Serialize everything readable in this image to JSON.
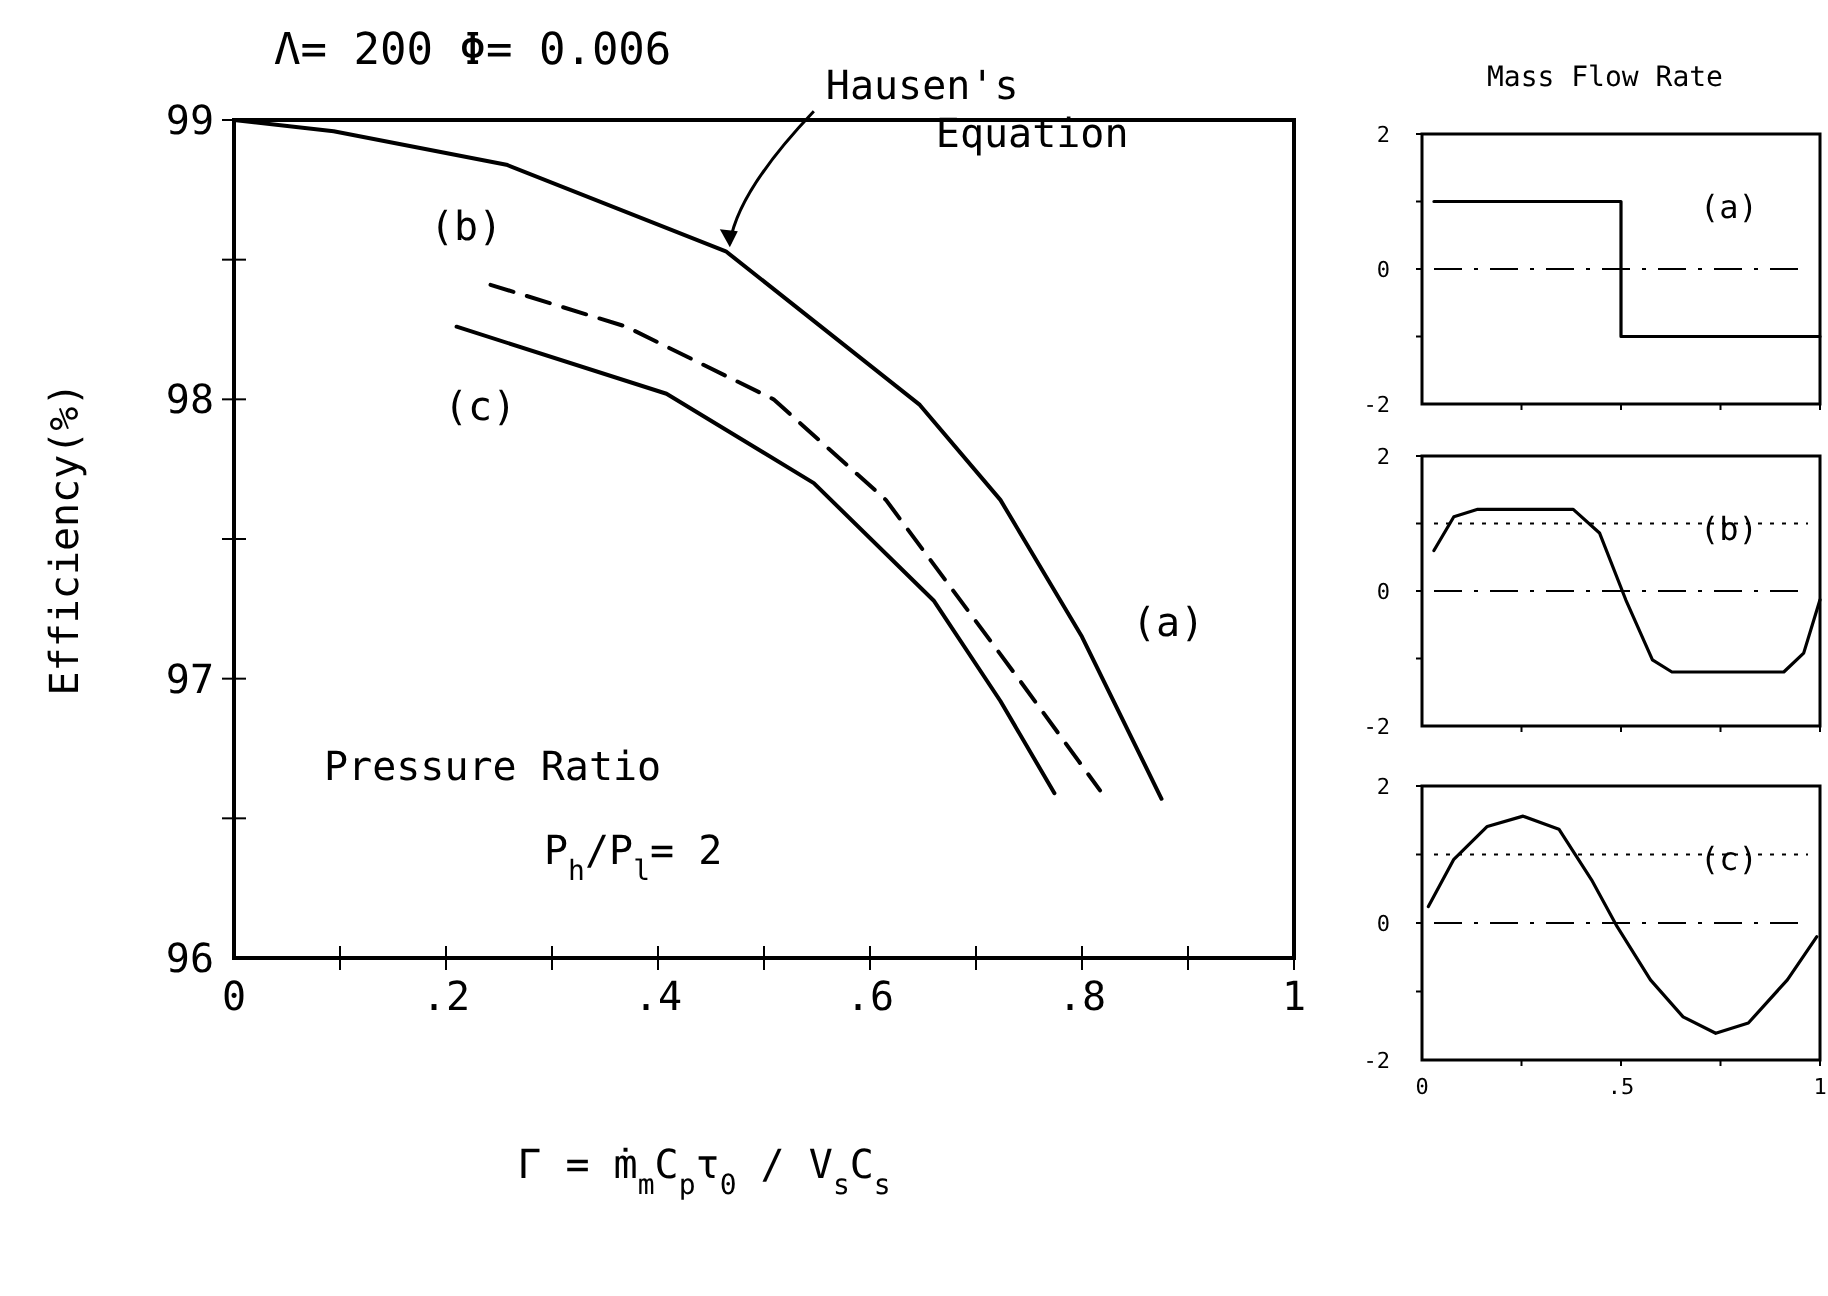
{
  "chart_data": [
    {
      "type": "line",
      "title": "Λ= 200  Φ= 0.006",
      "xlabel": "Γ = ṁ$_{m}$C$_{p}$τ$_{0}$ / V$_{s}$C$_{s}$",
      "ylabel": "Efficiency(%)",
      "xlim": [
        0,
        1
      ],
      "ylim": [
        96,
        99
      ],
      "xticks": [
        0,
        {
          "value": 0.1,
          "label": null
        },
        {
          "value": 0.2,
          "label": ".2"
        },
        {
          "value": 0.3,
          "label": null
        },
        {
          "value": 0.4,
          "label": ".4"
        },
        {
          "value": 0.5,
          "label": null
        },
        {
          "value": 0.6,
          "label": ".6"
        },
        {
          "value": 0.7,
          "label": null
        },
        {
          "value": 0.8,
          "label": ".8"
        },
        {
          "value": 0.9,
          "label": null
        },
        1
      ],
      "yticks": [
        96,
        {
          "value": 96.5,
          "label": null
        },
        97,
        {
          "value": 97.5,
          "label": null
        },
        98,
        {
          "value": 98.5,
          "label": null
        },
        99
      ],
      "series": [
        {
          "name": "Hausen's Equation",
          "color": "#000000",
          "line_style": "solid",
          "x": [
            0,
            0.094,
            0.257,
            0.464,
            0.647,
            0.723,
            0.8,
            0.875
          ],
          "values": [
            99,
            98.96,
            98.84,
            98.53,
            97.98,
            97.64,
            97.15,
            96.57
          ]
        },
        {
          "color": "#000000",
          "line_style": "dashed",
          "x": [
            0.242,
            0.37,
            0.509,
            0.615,
            0.742,
            0.817
          ],
          "values": [
            98.41,
            98.26,
            98.0,
            97.64,
            96.99,
            96.6
          ]
        },
        {
          "color": "#000000",
          "line_style": "solid",
          "x": [
            0.21,
            0.408,
            0.547,
            0.66,
            0.723,
            0.774
          ],
          "values": [
            98.26,
            98.02,
            97.7,
            97.28,
            96.92,
            96.59
          ]
        }
      ],
      "annotations": [
        "(a)",
        "(b)",
        "(c)",
        "Pressure Ratio",
        "P$_{h}$/P$_{l}$= 2"
      ]
    },
    {
      "type": "line",
      "title": "Mass Flow Rate",
      "xlim": [
        0,
        1
      ],
      "ylim": [
        -2,
        2
      ],
      "tick_labels": "y",
      "xticks": [
        0,
        {
          "value": 0.25,
          "label": null
        },
        0.5,
        {
          "value": 0.75,
          "label": null
        },
        1
      ],
      "yticks": [
        -2,
        {
          "value": -1,
          "label": null
        },
        0,
        {
          "value": 1,
          "label": null
        },
        2
      ],
      "series": [
        {
          "color": "#000000",
          "x": [
            0.03,
            0.5,
            0.5,
            1
          ],
          "values": [
            1,
            1,
            -1,
            -1
          ]
        }
      ],
      "ref_lines": [
        {
          "axis": "y",
          "value": 0,
          "line_style": "dashed"
        }
      ],
      "annotations": [
        "(a)"
      ]
    },
    {
      "type": "line",
      "xlim": [
        0,
        1
      ],
      "ylim": [
        -2,
        2
      ],
      "tick_labels": "y",
      "xticks": [
        0,
        {
          "value": 0.25,
          "label": null
        },
        0.5,
        {
          "value": 0.75,
          "label": null
        },
        1
      ],
      "yticks": [
        -2,
        {
          "value": -1,
          "label": null
        },
        0,
        {
          "value": 1,
          "label": null
        },
        2
      ],
      "series": [
        {
          "color": "#000000",
          "x": [
            0.03,
            0.08,
            0.14,
            0.38,
            0.446,
            0.512,
            0.579,
            0.628,
            0.909,
            0.959,
            1
          ],
          "values": [
            0.6,
            1.1,
            1.21,
            1.21,
            0.86,
            -0.13,
            -1.02,
            -1.2,
            -1.2,
            -0.92,
            -0.13
          ]
        }
      ],
      "ref_lines": [
        {
          "axis": "y",
          "value": 0,
          "line_style": "dashed"
        },
        {
          "axis": "y",
          "value": 1,
          "line_style": "dotted"
        }
      ],
      "annotations": [
        "(b)"
      ]
    },
    {
      "type": "line",
      "xlim": [
        0,
        1
      ],
      "ylim": [
        -2,
        2
      ],
      "xticks": [
        0,
        {
          "value": 0.25,
          "label": null
        },
        {
          "value": 0.5,
          "label": ".5"
        },
        {
          "value": 0.75,
          "label": null
        },
        1
      ],
      "yticks": [
        -2,
        {
          "value": -1,
          "label": null
        },
        0,
        {
          "value": 1,
          "label": null
        },
        2
      ],
      "series": [
        {
          "color": "#000000",
          "x": [
            0.016,
            0.08,
            0.164,
            0.254,
            0.344,
            0.426,
            0.49,
            0.574,
            0.656,
            0.738,
            0.82,
            0.918,
            0.992
          ],
          "values": [
            0.24,
            0.93,
            1.41,
            1.56,
            1.37,
            0.63,
            -0.05,
            -0.83,
            -1.37,
            -1.61,
            -1.46,
            -0.83,
            -0.2
          ]
        }
      ],
      "ref_lines": [
        {
          "axis": "y",
          "value": 0,
          "line_style": "dashed"
        },
        {
          "axis": "y",
          "value": 1,
          "line_style": "dotted"
        }
      ],
      "annotations": [
        "(c)"
      ]
    }
  ]
}
